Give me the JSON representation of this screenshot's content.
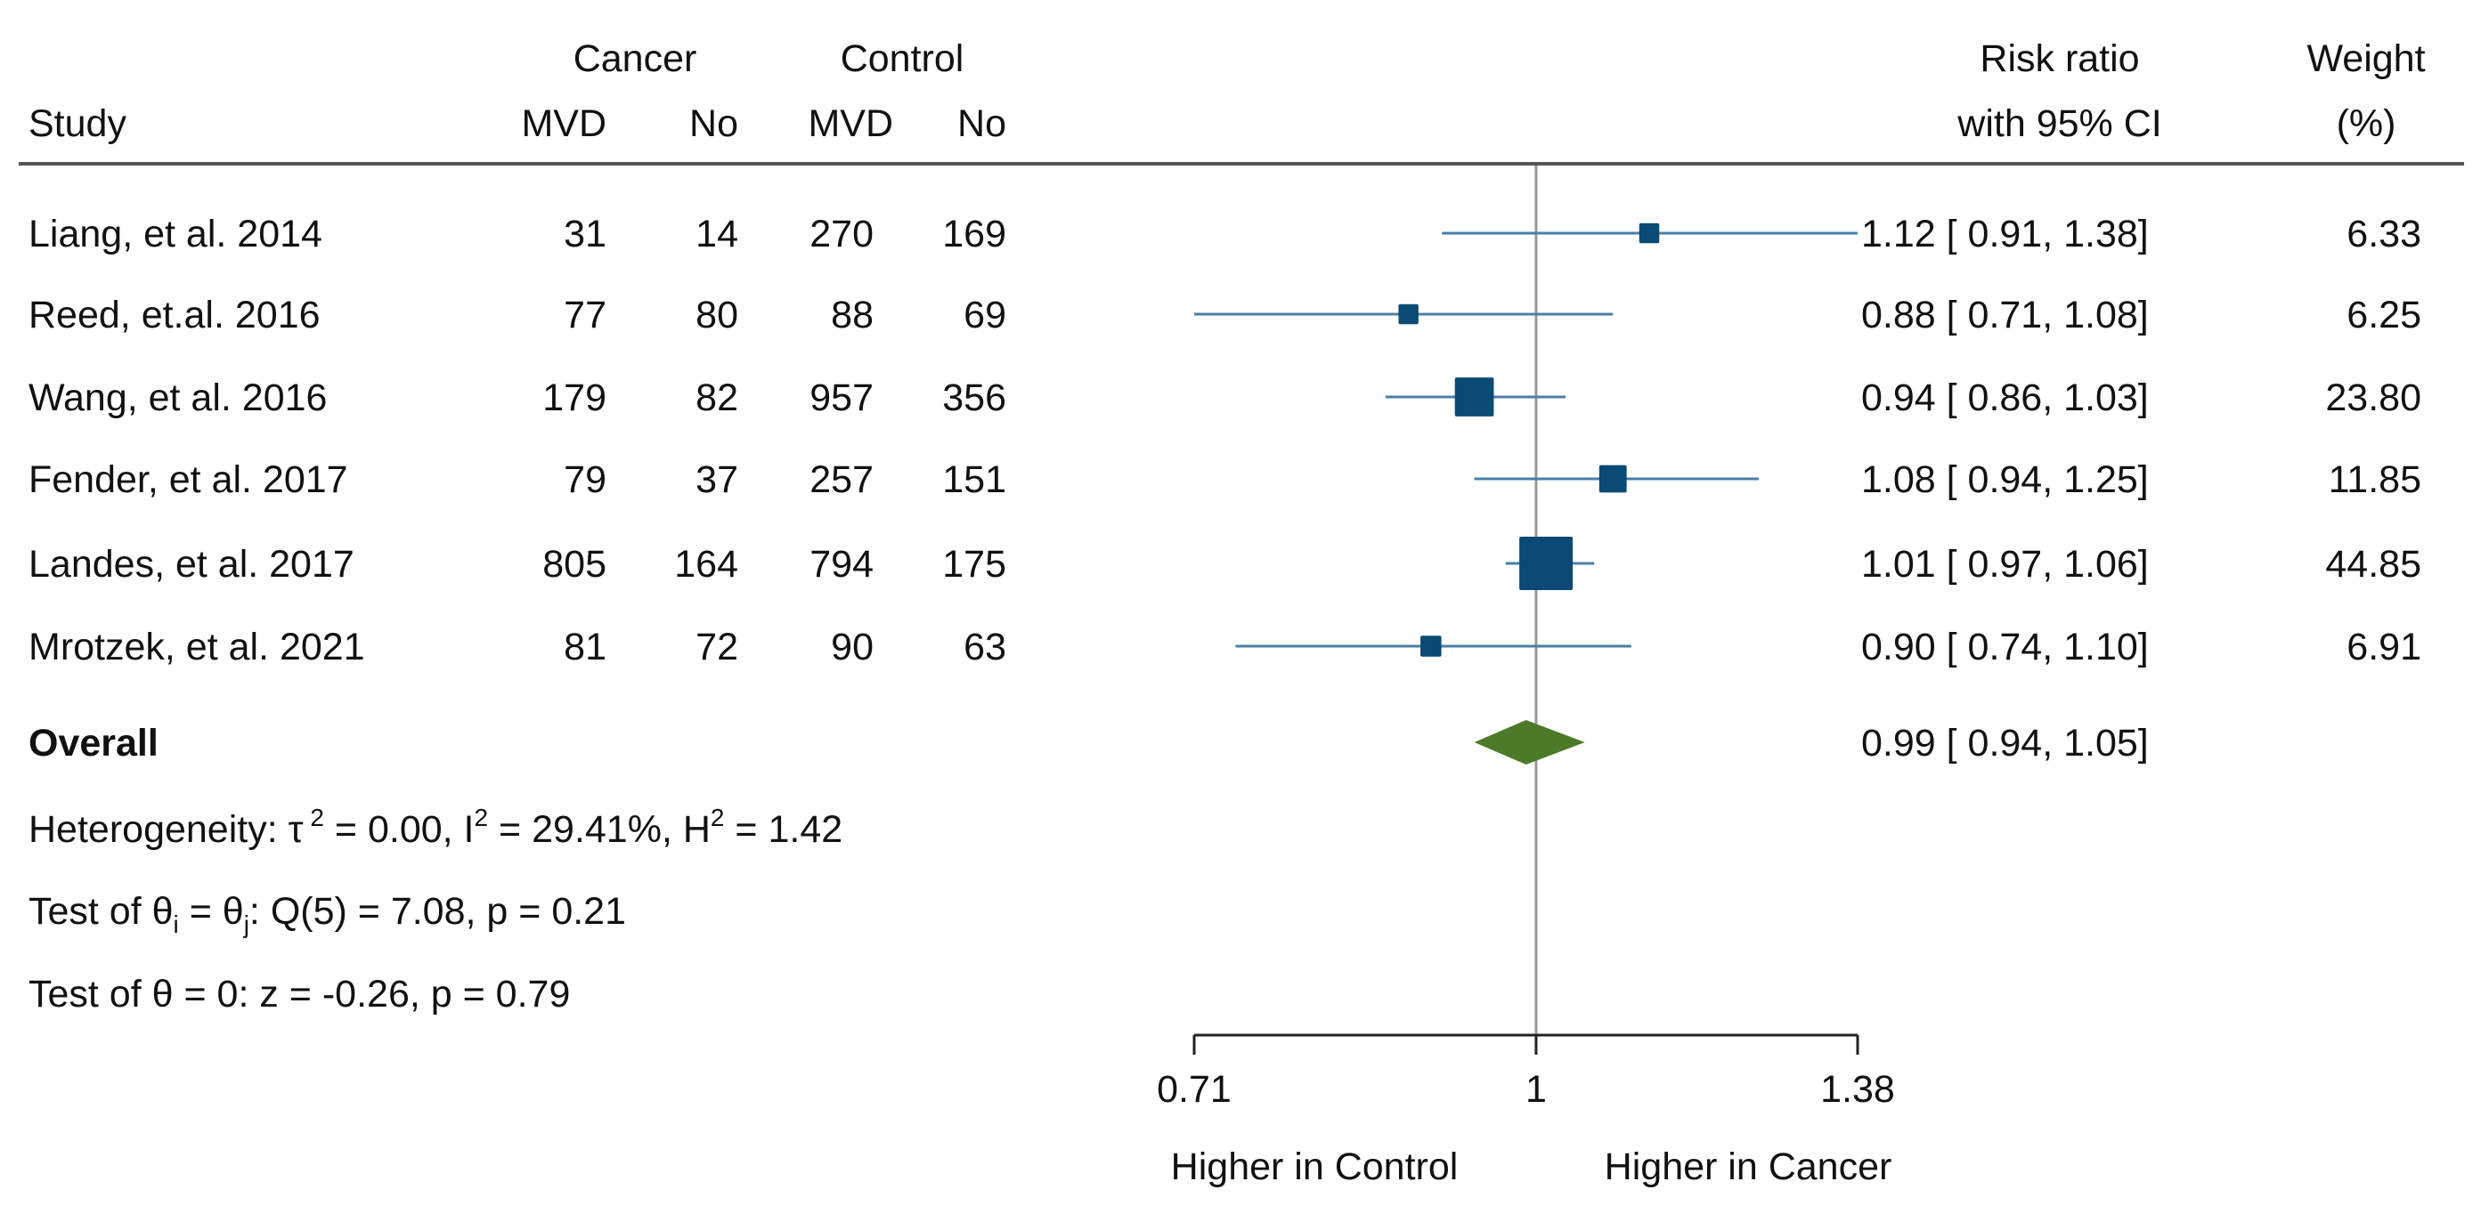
{
  "chart_data": {
    "type": "forest",
    "scale": "log",
    "xlim": [
      0.71,
      1.38
    ],
    "xticks": [
      "0.71",
      "1",
      "1.38"
    ],
    "xtick_values": [
      0.71,
      1,
      1.38
    ],
    "null_value": 1,
    "xlabel_left": "Higher in Control",
    "xlabel_right": "Higher in Cancer",
    "headers": {
      "study": "Study",
      "cancer": "Cancer",
      "control": "Control",
      "mvd": "MVD",
      "no": "No",
      "rr_line1": "Risk ratio",
      "rr_line2": "with 95% CI",
      "weight_line1": "Weight",
      "weight_line2": "(%)"
    },
    "studies": [
      {
        "name": "Liang, et al. 2014",
        "cancer_mvd": "31",
        "cancer_no": "14",
        "control_mvd": "270",
        "control_no": "169",
        "rr": 1.12,
        "lo": 0.91,
        "hi": 1.38,
        "ci_text": "1.12 [ 0.91,  1.38]",
        "weight": 6.33,
        "weight_text": "6.33"
      },
      {
        "name": "Reed, et.al. 2016",
        "cancer_mvd": "77",
        "cancer_no": "80",
        "control_mvd": "88",
        "control_no": "69",
        "rr": 0.88,
        "lo": 0.71,
        "hi": 1.08,
        "ci_text": "0.88 [ 0.71,  1.08]",
        "weight": 6.25,
        "weight_text": "6.25"
      },
      {
        "name": "Wang, et al. 2016",
        "cancer_mvd": "179",
        "cancer_no": "82",
        "control_mvd": "957",
        "control_no": "356",
        "rr": 0.94,
        "lo": 0.86,
        "hi": 1.03,
        "ci_text": "0.94 [ 0.86,  1.03]",
        "weight": 23.8,
        "weight_text": "23.80"
      },
      {
        "name": "Fender, et al. 2017",
        "cancer_mvd": "79",
        "cancer_no": "37",
        "control_mvd": "257",
        "control_no": "151",
        "rr": 1.08,
        "lo": 0.94,
        "hi": 1.25,
        "ci_text": "1.08 [ 0.94,  1.25]",
        "weight": 11.85,
        "weight_text": "11.85"
      },
      {
        "name": "Landes, et al. 2017",
        "cancer_mvd": "805",
        "cancer_no": "164",
        "control_mvd": "794",
        "control_no": "175",
        "rr": 1.01,
        "lo": 0.97,
        "hi": 1.06,
        "ci_text": "1.01 [ 0.97,  1.06]",
        "weight": 44.85,
        "weight_text": "44.85"
      },
      {
        "name": "Mrotzek, et al. 2021",
        "cancer_mvd": "81",
        "cancer_no": "72",
        "control_mvd": "90",
        "control_no": "63",
        "rr": 0.9,
        "lo": 0.74,
        "hi": 1.1,
        "ci_text": "0.90 [ 0.74,  1.10]",
        "weight": 6.91,
        "weight_text": "6.91"
      }
    ],
    "overall": {
      "label": "Overall",
      "rr": 0.99,
      "lo": 0.94,
      "hi": 1.05,
      "ci_text": "0.99 [ 0.94,  1.05]"
    },
    "stats": {
      "heterogeneity": "Heterogeneity: τ² = 0.00, I² = 29.41%, H² = 1.42",
      "q_test": "Test of θi = θj: Q(5) = 7.08, p = 0.21",
      "z_test": "Test of θ = 0: z = -0.26, p = 0.79"
    },
    "colors": {
      "marker": "#0b4a74",
      "ci_line": "#4a7fa5",
      "diamond": "#4c7a28",
      "null_line": "#999999"
    }
  }
}
